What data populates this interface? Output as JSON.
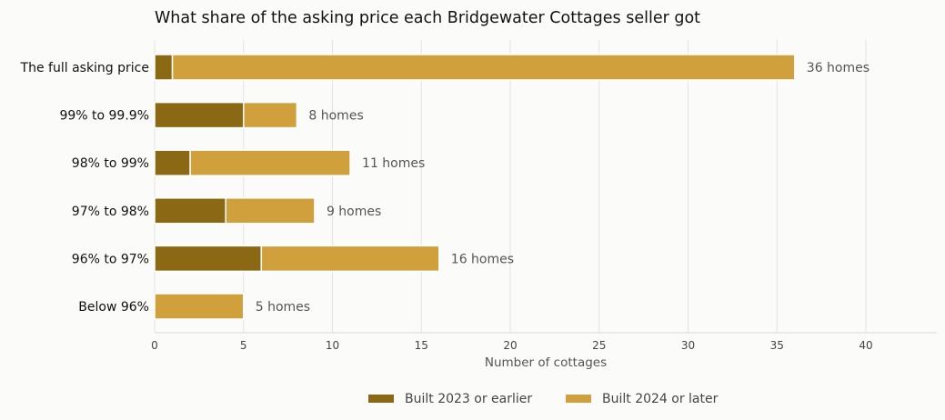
{
  "chart_data": {
    "type": "bar",
    "orientation": "horizontal",
    "stacked": true,
    "title": "What share of the asking price each Bridgewater Cottages seller got",
    "xlabel": "Number of cottages",
    "ylabel": "",
    "xlim": [
      0,
      44
    ],
    "xticks": [
      0,
      5,
      10,
      15,
      20,
      25,
      30,
      35,
      40
    ],
    "categories": [
      "The full asking price",
      "99% to 99.9%",
      "98% to 99%",
      "97% to 98%",
      "96% to 97%",
      "Below 96%"
    ],
    "series": [
      {
        "name": "Built 2023 or earlier",
        "color": "#8b6914",
        "values": [
          1,
          5,
          2,
          4,
          6,
          0
        ]
      },
      {
        "name": "Built 2024 or later",
        "color": "#d0a03c",
        "values": [
          35,
          3,
          9,
          5,
          10,
          5
        ]
      }
    ],
    "totals": [
      "36 homes",
      "8 homes",
      "11 homes",
      "9 homes",
      "16 homes",
      "5 homes"
    ],
    "grid": "vertical",
    "legend_position": "bottom-center"
  }
}
